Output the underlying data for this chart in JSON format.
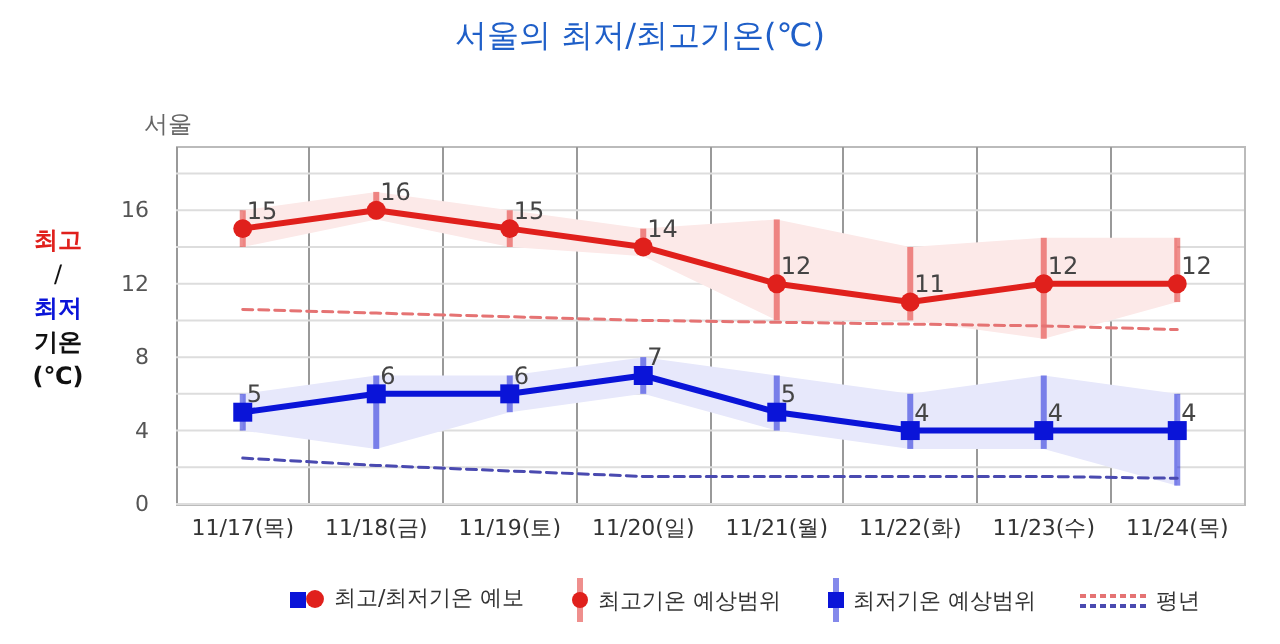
{
  "chart_data": {
    "type": "line",
    "title": "서울의 최저/최고기온(℃)",
    "subtitle": "서울",
    "ylabel": "최고\n/\n최저\n기온\n(℃)",
    "categories": [
      "11/17(목)",
      "11/18(금)",
      "11/19(토)",
      "11/20(일)",
      "11/21(월)",
      "11/22(화)",
      "11/23(수)",
      "11/24(목)"
    ],
    "ylim": [
      0,
      19.5
    ],
    "yticks": [
      0,
      {
        "value": 2,
        "label": null
      },
      4,
      {
        "value": 6,
        "label": null
      },
      8,
      {
        "value": 10,
        "label": null
      },
      12,
      {
        "value": 14,
        "label": null
      },
      16,
      {
        "value": 18,
        "label": null
      }
    ],
    "grid": true,
    "legend": "bottom",
    "annotations": [
      "최고기온 예상범위",
      "최저기온 예상범위"
    ],
    "series": [
      {
        "name": "최고/최저기온 예보",
        "color": "#e0201c",
        "marker": "circle",
        "values": [
          15,
          16,
          15,
          14,
          12,
          11,
          12,
          12
        ],
        "value_labels": [
          "15",
          "16",
          "15",
          "14",
          "12",
          "11",
          "12",
          "12"
        ],
        "errors": [
          [
            14,
            16
          ],
          [
            15.5,
            17
          ],
          [
            14,
            16
          ],
          [
            13.5,
            15
          ],
          [
            10,
            15.5
          ],
          [
            10,
            14
          ],
          [
            9,
            14.5
          ],
          [
            11,
            14.5
          ]
        ],
        "lower": [
          14,
          15.5,
          14,
          13.5,
          10,
          10,
          9,
          11
        ],
        "upper": [
          16,
          17,
          16,
          15,
          15.5,
          14,
          14.5,
          14.5
        ]
      },
      {
        "color": "#0a14d8",
        "marker": "square",
        "values": [
          5,
          6,
          6,
          7,
          5,
          4,
          4,
          4
        ],
        "value_labels": [
          "5",
          "6",
          "6",
          "7",
          "5",
          "4",
          "4",
          "4"
        ],
        "errors": [
          [
            4,
            6
          ],
          [
            3,
            7
          ],
          [
            5,
            7
          ],
          [
            6,
            8
          ],
          [
            4,
            7
          ],
          [
            3,
            6
          ],
          [
            3,
            7
          ],
          [
            1,
            6
          ]
        ],
        "lower": [
          4,
          3,
          5,
          6,
          4,
          3,
          3,
          1
        ],
        "upper": [
          6,
          7,
          7,
          8,
          7,
          6,
          7,
          6
        ]
      },
      {
        "name": "평년",
        "color": "#e57373",
        "line_style": "dashed",
        "marker": "none",
        "values": [
          10.6,
          10.4,
          10.2,
          10,
          9.9,
          9.8,
          9.7,
          9.5
        ]
      },
      {
        "color": "#4a4ab0",
        "line_style": "dashed",
        "marker": "none",
        "values": [
          2.5,
          2.1,
          1.8,
          1.5,
          1.5,
          1.5,
          1.5,
          1.4
        ]
      }
    ]
  }
}
